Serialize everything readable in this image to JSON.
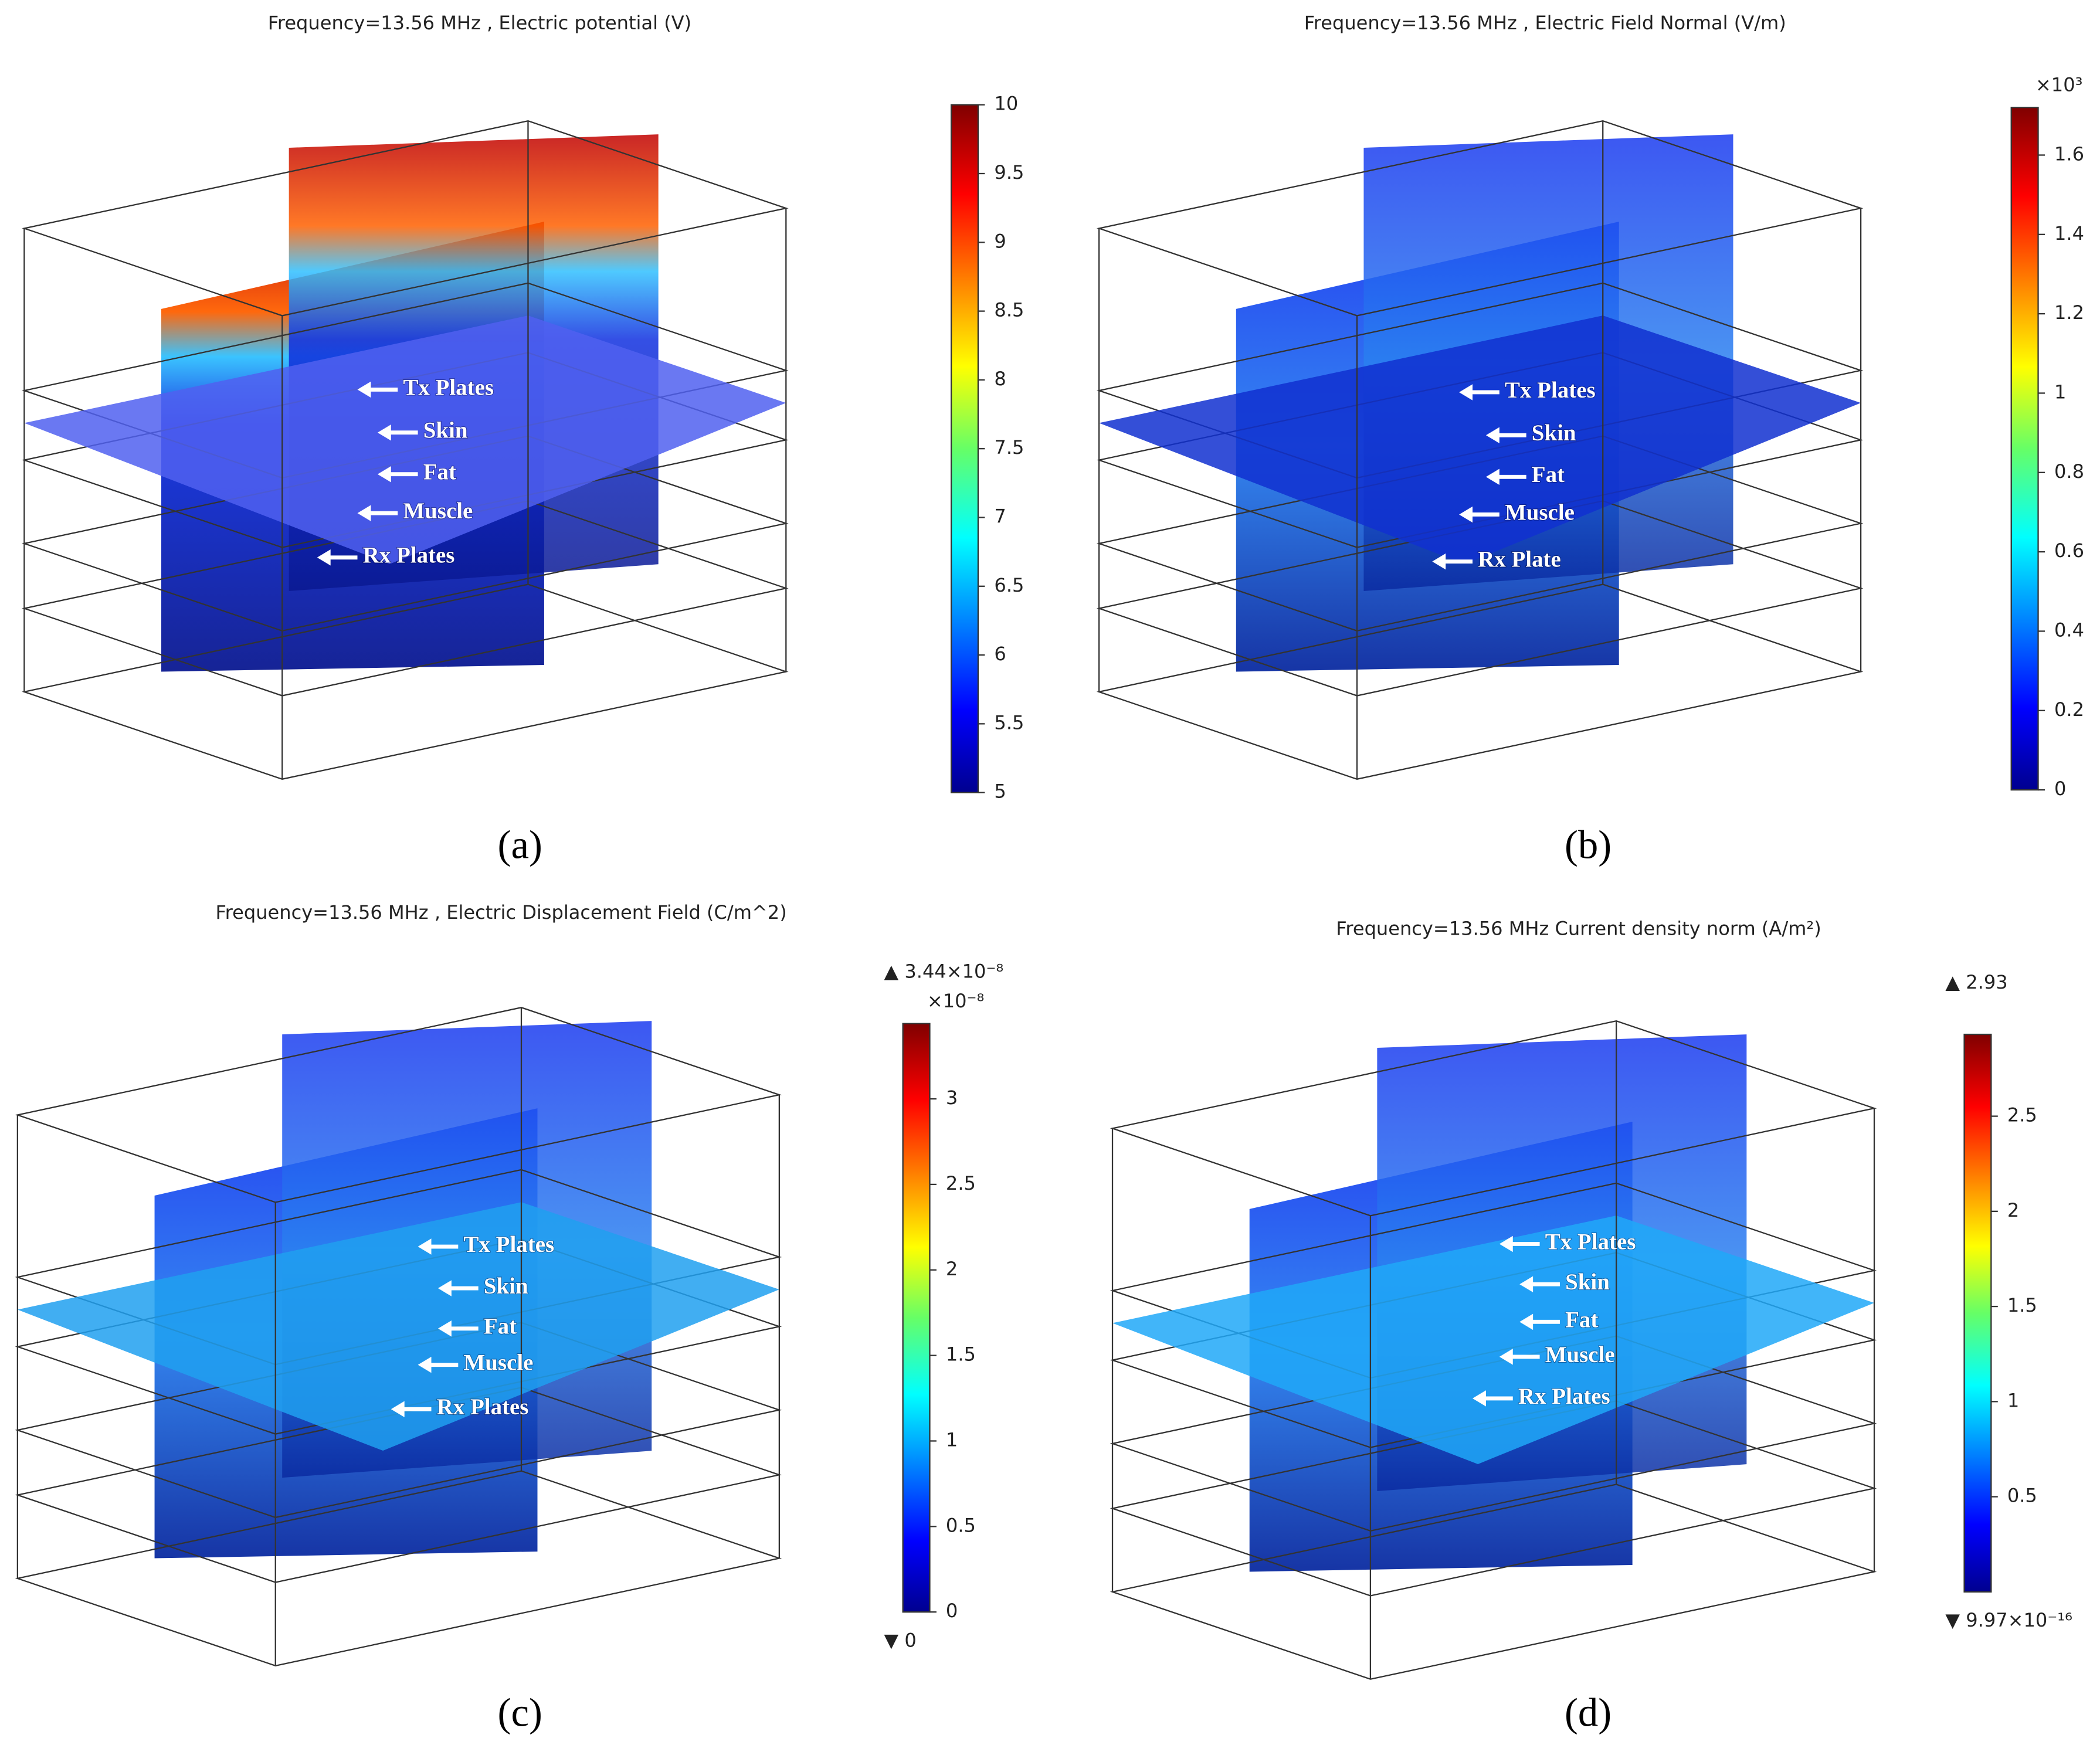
{
  "panels": [
    {
      "title": "Frequency=13.56 MHz , Electric potential (V)",
      "caption": "(a)",
      "colorbar": {
        "lim": [
          5,
          10
        ],
        "ticks": [
          5,
          5.5,
          6,
          6.5,
          7,
          7.5,
          8,
          8.5,
          9,
          9.5,
          10
        ]
      },
      "labels": [
        "Tx Plates",
        "Skin",
        "Fat",
        "Muscle",
        "Rx Plates"
      ]
    },
    {
      "title": "Frequency=13.56 MHz , Electric Field Normal (V/m)",
      "caption": "(b)",
      "colorbar": {
        "multiplier": "×10³",
        "lim": [
          0,
          1.72
        ],
        "ticks": [
          0,
          0.2,
          0.4,
          0.6,
          0.8,
          1,
          1.2,
          1.4,
          1.6
        ]
      },
      "labels": [
        "Tx Plates",
        "Skin",
        "Fat",
        "Muscle",
        "Rx Plate"
      ]
    },
    {
      "title": "Frequency=13.56 MHz , Electric Displacement Field (C/m^2)",
      "caption": "(c)",
      "colorbar": {
        "max_label": "▲ 3.44×10⁻⁸",
        "multiplier": "×10⁻⁸",
        "min_label": "▼ 0",
        "lim": [
          0,
          3.44
        ],
        "ticks": [
          0,
          0.5,
          1,
          1.5,
          2,
          2.5,
          3
        ]
      },
      "labels": [
        "Tx Plates",
        "Skin",
        "Fat",
        "Muscle",
        "Rx Plates"
      ]
    },
    {
      "title": "Frequency=13.56 MHz Current density norm (A/m²)",
      "caption": "(d)",
      "colorbar": {
        "max_label": "▲ 2.93",
        "min_label": "▼ 9.97×10⁻¹⁶",
        "lim": [
          9.97e-16,
          2.93
        ],
        "ticks": [
          0.5,
          1,
          1.5,
          2,
          2.5
        ]
      },
      "labels": [
        "Tx Plates",
        "Skin",
        "Fat",
        "Muscle",
        "Rx Plates"
      ]
    }
  ]
}
